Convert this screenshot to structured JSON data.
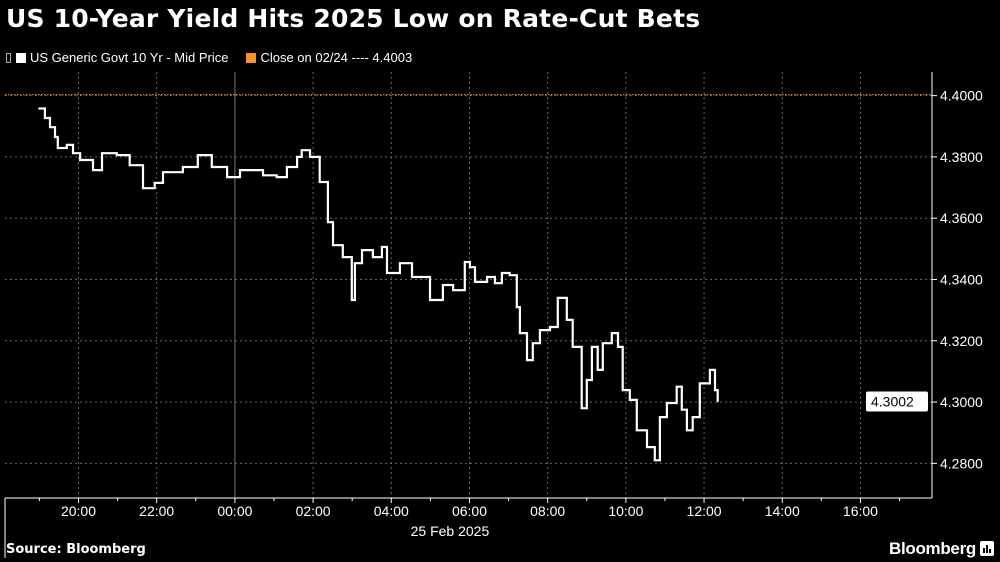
{
  "chart_data": {
    "type": "line",
    "title": "US 10-Year Yield Hits 2025 Low on Rate-Cut Bets",
    "legend": [
      {
        "name": "US Generic Govt 10 Yr - Mid Price",
        "color": "#ffffff"
      },
      {
        "name": "Close on 02/24 ---- 4.4003",
        "color": "#f5951f"
      }
    ],
    "legend_position": "top-left",
    "reference_line": {
      "label": "Close on 02/24",
      "value": 4.4003,
      "color": "#f5951f"
    },
    "last_value_label": "4.3002",
    "last_value": 4.3002,
    "x_unit": "hours relative to 25 Feb 2025 00:00",
    "xlim": [
      -5.88,
      17.83
    ],
    "ylim": [
      4.2687,
      4.4077
    ],
    "x_ticks": [
      {
        "x": -4,
        "label": "20:00"
      },
      {
        "x": -2,
        "label": "22:00"
      },
      {
        "x": 0,
        "label": "00:00"
      },
      {
        "x": 2,
        "label": "02:00"
      },
      {
        "x": 4,
        "label": "04:00"
      },
      {
        "x": 6,
        "label": "06:00"
      },
      {
        "x": 8,
        "label": "08:00"
      },
      {
        "x": 10,
        "label": "10:00"
      },
      {
        "x": 12,
        "label": "12:00"
      },
      {
        "x": 14,
        "label": "14:00"
      },
      {
        "x": 16,
        "label": "16:00"
      }
    ],
    "x_date_label": "25 Feb 2025",
    "y_ticks": [
      {
        "y": 4.4,
        "label": "4.4000"
      },
      {
        "y": 4.38,
        "label": "4.3800"
      },
      {
        "y": 4.36,
        "label": "4.3600"
      },
      {
        "y": 4.34,
        "label": "4.3400"
      },
      {
        "y": 4.32,
        "label": "4.3200"
      },
      {
        "y": 4.3,
        "label": "4.3000"
      },
      {
        "y": 4.28,
        "label": "4.2800"
      }
    ],
    "grid": true,
    "series": [
      {
        "name": "US Generic Govt 10 Yr - Mid Price",
        "x": [
          -5.01,
          -4.86,
          -4.73,
          -4.6,
          -4.53,
          -4.3,
          -4.14,
          -3.96,
          -3.63,
          -3.4,
          -3.02,
          -2.69,
          -2.35,
          -2.05,
          -1.84,
          -1.33,
          -0.95,
          -0.59,
          -0.2,
          0.13,
          0.72,
          1.07,
          1.33,
          1.59,
          1.71,
          1.92,
          2.17,
          2.38,
          2.51,
          2.76,
          2.99,
          3.07,
          3.25,
          3.53,
          3.76,
          3.89,
          4.22,
          4.53,
          4.73,
          4.99,
          5.32,
          5.58,
          5.88,
          6.01,
          6.14,
          6.45,
          6.65,
          6.83,
          7.03,
          7.21,
          7.29,
          7.47,
          7.62,
          7.8,
          8.06,
          8.26,
          8.49,
          8.64,
          8.87,
          9.0,
          9.13,
          9.28,
          9.41,
          9.64,
          9.8,
          9.92,
          10.1,
          10.28,
          10.54,
          10.74,
          10.87,
          11.05,
          11.3,
          11.43,
          11.56,
          11.71,
          11.89,
          12.15,
          12.28,
          12.35
        ],
        "y": [
          4.3958,
          4.3927,
          4.3897,
          4.3865,
          4.3829,
          4.3839,
          4.3812,
          4.379,
          4.3757,
          4.3812,
          4.3806,
          4.3773,
          4.3698,
          4.3715,
          4.375,
          4.3767,
          4.3806,
          4.3767,
          4.3734,
          4.3757,
          4.374,
          4.3734,
          4.3767,
          4.38,
          4.3822,
          4.38,
          4.3718,
          4.3587,
          4.3512,
          4.3473,
          4.3333,
          4.3453,
          4.3496,
          4.3473,
          4.3506,
          4.3421,
          4.3453,
          4.3408,
          4.3408,
          4.3333,
          4.3382,
          4.3365,
          4.3457,
          4.344,
          4.3392,
          4.3408,
          4.3388,
          4.3421,
          4.3414,
          4.331,
          4.3225,
          4.3137,
          4.3192,
          4.3235,
          4.3245,
          4.334,
          4.3268,
          4.318,
          4.298,
          4.3072,
          4.318,
          4.3105,
          4.3192,
          4.3225,
          4.318,
          4.3039,
          4.3007,
          4.2908,
          4.2853,
          4.281,
          4.2951,
          4.2997,
          4.305,
          4.2975,
          4.2908,
          4.2951,
          4.3061,
          4.3105,
          4.3039,
          4.3002
        ],
        "color": "#ffffff"
      }
    ],
    "source": "Source: Bloomberg",
    "brand": "Bloomberg"
  }
}
